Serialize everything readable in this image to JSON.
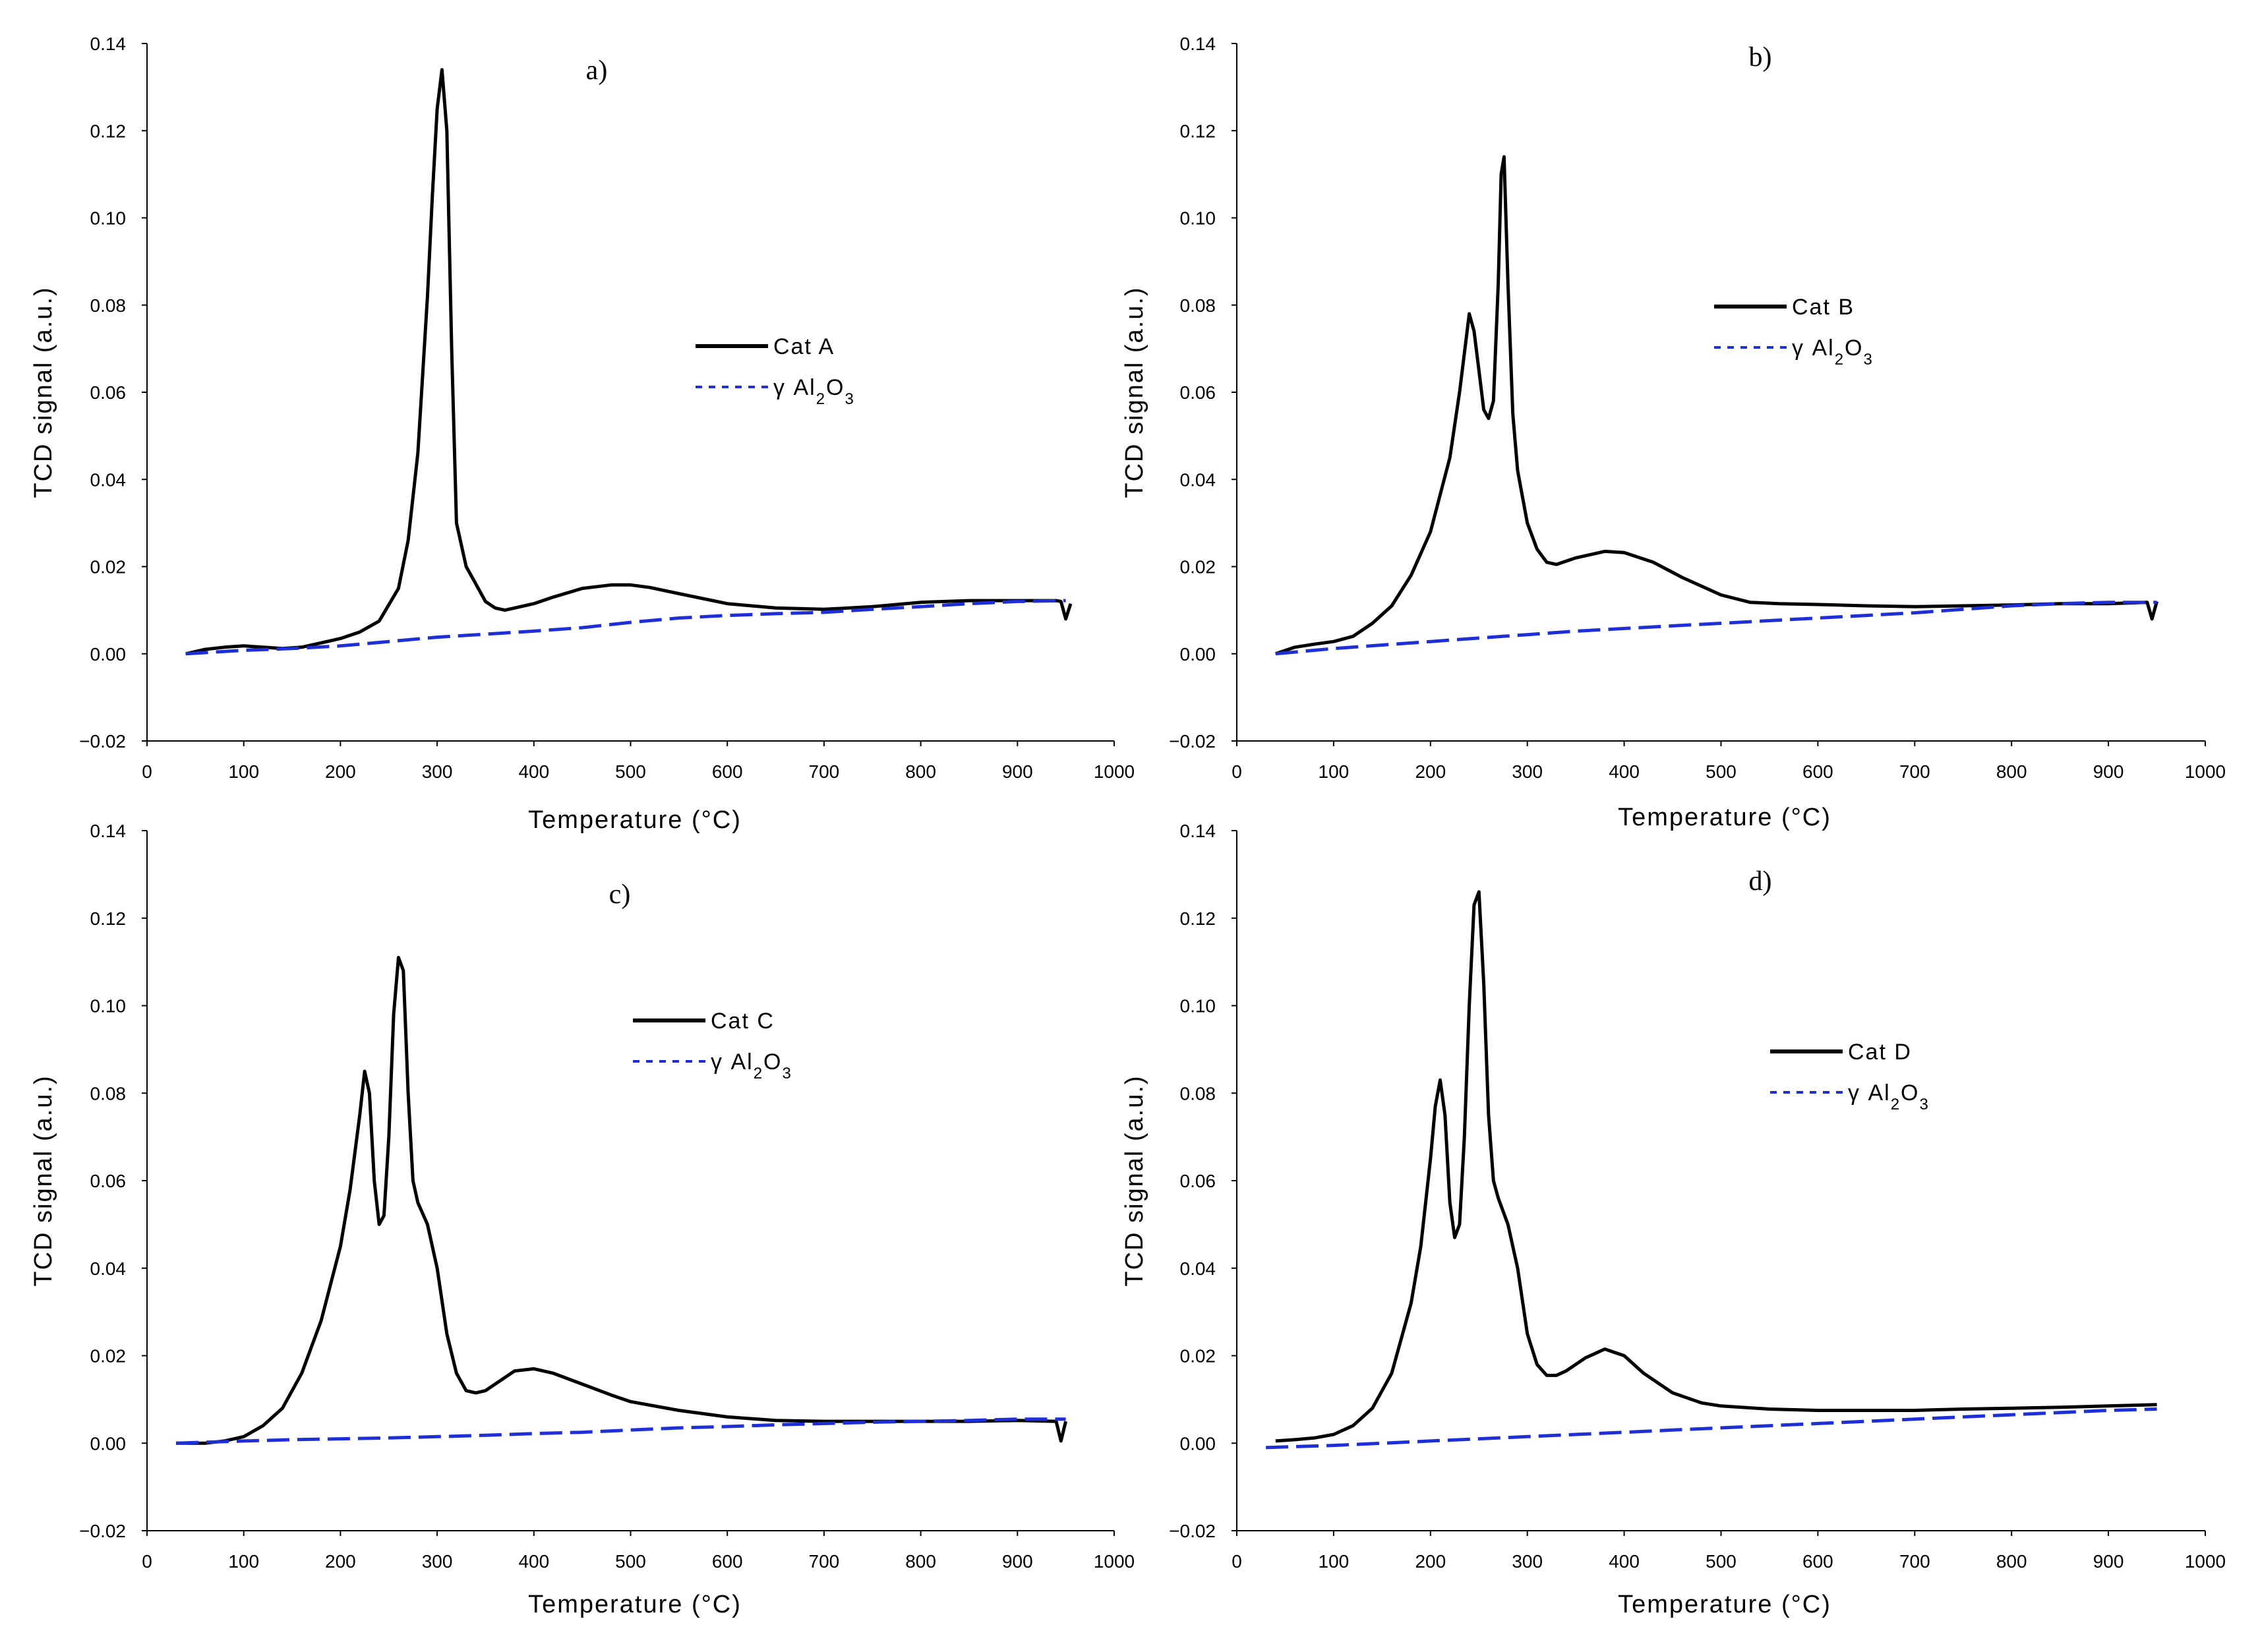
{
  "colors": {
    "cat": "#000000",
    "baseline": "#1f2fd8",
    "axis": "#000000"
  },
  "chart_data": [
    {
      "type": "line",
      "title": "a)",
      "xlabel": "Temperature (°C)",
      "ylabel": "TCD signal (a.u.)",
      "xlim": [
        0,
        1000
      ],
      "ylim": [
        -0.02,
        0.14
      ],
      "xticks": [
        "0",
        "100",
        "200",
        "300",
        "400",
        "500",
        "600",
        "700",
        "800",
        "900",
        "1000"
      ],
      "yticks": [
        "0.14",
        "0.12",
        "0.10",
        "0.08",
        "0.06",
        "0.04",
        "0.02",
        "0.00",
        "−0.02"
      ],
      "legend": {
        "position": "center-right",
        "entries": [
          "Cat A",
          "γ Al2O3"
        ]
      },
      "series": [
        {
          "name": "Cat A",
          "style": "solid",
          "x": [
            40,
            60,
            80,
            100,
            120,
            140,
            160,
            180,
            200,
            220,
            240,
            260,
            270,
            280,
            290,
            295,
            300,
            305,
            310,
            315,
            320,
            330,
            340,
            350,
            360,
            370,
            380,
            400,
            420,
            450,
            480,
            500,
            520,
            550,
            600,
            650,
            700,
            750,
            800,
            850,
            900,
            940,
            945,
            950,
            955
          ],
          "y": [
            0.0,
            0.001,
            0.0015,
            0.0018,
            0.0015,
            0.0012,
            0.0015,
            0.0025,
            0.0035,
            0.005,
            0.0075,
            0.015,
            0.026,
            0.046,
            0.082,
            0.105,
            0.125,
            0.134,
            0.12,
            0.07,
            0.03,
            0.02,
            0.016,
            0.012,
            0.0105,
            0.01,
            0.0105,
            0.0115,
            0.013,
            0.015,
            0.0158,
            0.0158,
            0.0152,
            0.0138,
            0.0115,
            0.0105,
            0.0102,
            0.0108,
            0.0118,
            0.0122,
            0.0122,
            0.0122,
            0.012,
            0.008,
            0.0115
          ]
        },
        {
          "name": "γ Al2O3",
          "style": "dashed",
          "x": [
            40,
            100,
            150,
            200,
            250,
            300,
            350,
            400,
            450,
            500,
            550,
            600,
            650,
            700,
            750,
            800,
            850,
            900,
            950
          ],
          "y": [
            0.0,
            0.0008,
            0.0012,
            0.0018,
            0.0028,
            0.0038,
            0.0045,
            0.0052,
            0.006,
            0.0072,
            0.0082,
            0.0088,
            0.0092,
            0.0095,
            0.0102,
            0.0108,
            0.0115,
            0.012,
            0.0122
          ]
        }
      ]
    },
    {
      "type": "line",
      "title": "b)",
      "xlabel": "Temperature (°C)",
      "ylabel": "TCD signal (a.u.)",
      "xlim": [
        0,
        1000
      ],
      "ylim": [
        -0.02,
        0.14
      ],
      "xticks": [
        "0",
        "100",
        "200",
        "300",
        "400",
        "500",
        "600",
        "700",
        "800",
        "900",
        "1000"
      ],
      "yticks": [
        "0.14",
        "0.12",
        "0.10",
        "0.08",
        "0.06",
        "0.04",
        "0.02",
        "0.00",
        "−0.02"
      ],
      "legend": {
        "position": "upper-right",
        "entries": [
          "Cat B",
          "γ Al2O3"
        ]
      },
      "series": [
        {
          "name": "Cat B",
          "style": "solid",
          "x": [
            40,
            60,
            80,
            100,
            120,
            140,
            160,
            180,
            200,
            220,
            230,
            240,
            245,
            250,
            255,
            260,
            265,
            270,
            273,
            276,
            280,
            285,
            290,
            300,
            310,
            320,
            330,
            350,
            380,
            400,
            430,
            460,
            500,
            530,
            560,
            600,
            650,
            700,
            750,
            800,
            850,
            900,
            940,
            945,
            950
          ],
          "y": [
            0.0,
            0.0015,
            0.0022,
            0.0028,
            0.004,
            0.007,
            0.011,
            0.018,
            0.028,
            0.045,
            0.06,
            0.078,
            0.074,
            0.065,
            0.056,
            0.054,
            0.058,
            0.085,
            0.11,
            0.114,
            0.085,
            0.055,
            0.042,
            0.03,
            0.024,
            0.021,
            0.0205,
            0.022,
            0.0235,
            0.0232,
            0.021,
            0.0175,
            0.0135,
            0.0118,
            0.0115,
            0.0113,
            0.011,
            0.0108,
            0.011,
            0.0112,
            0.0115,
            0.0115,
            0.0118,
            0.008,
            0.012
          ]
        },
        {
          "name": "γ Al2O3",
          "style": "dashed",
          "x": [
            40,
            100,
            150,
            200,
            250,
            300,
            350,
            400,
            450,
            500,
            550,
            600,
            650,
            700,
            750,
            800,
            850,
            900,
            950
          ],
          "y": [
            0.0,
            0.0012,
            0.002,
            0.0028,
            0.0036,
            0.0044,
            0.0052,
            0.0058,
            0.0064,
            0.007,
            0.0076,
            0.0082,
            0.0088,
            0.0094,
            0.0102,
            0.011,
            0.0115,
            0.0118,
            0.0118
          ]
        }
      ]
    },
    {
      "type": "line",
      "title": "c)",
      "xlabel": "Temperature (°C)",
      "ylabel": "TCD signal (a.u.)",
      "xlim": [
        0,
        1000
      ],
      "ylim": [
        -0.02,
        0.14
      ],
      "xticks": [
        "0",
        "100",
        "200",
        "300",
        "400",
        "500",
        "600",
        "700",
        "800",
        "900",
        "1000"
      ],
      "yticks": [
        "0.14",
        "0.12",
        "0.10",
        "0.08",
        "0.06",
        "0.04",
        "0.02",
        "0.00",
        "−0.02"
      ],
      "legend": {
        "position": "center-right",
        "entries": [
          "Cat C",
          "γ Al2O3"
        ]
      },
      "series": [
        {
          "name": "Cat C",
          "style": "solid",
          "x": [
            30,
            60,
            80,
            100,
            120,
            140,
            160,
            180,
            200,
            210,
            220,
            225,
            230,
            235,
            240,
            245,
            250,
            255,
            260,
            265,
            270,
            275,
            280,
            290,
            300,
            310,
            320,
            330,
            340,
            350,
            360,
            380,
            400,
            420,
            450,
            480,
            500,
            550,
            600,
            650,
            700,
            750,
            800,
            850,
            900,
            940,
            945,
            950
          ],
          "y": [
            0.0,
            0.0,
            0.0005,
            0.0015,
            0.004,
            0.008,
            0.016,
            0.028,
            0.045,
            0.058,
            0.075,
            0.085,
            0.08,
            0.06,
            0.05,
            0.052,
            0.07,
            0.098,
            0.111,
            0.108,
            0.08,
            0.06,
            0.055,
            0.05,
            0.04,
            0.025,
            0.016,
            0.012,
            0.0115,
            0.012,
            0.0135,
            0.0165,
            0.017,
            0.016,
            0.0135,
            0.011,
            0.0095,
            0.0075,
            0.006,
            0.0052,
            0.005,
            0.005,
            0.005,
            0.005,
            0.0052,
            0.005,
            0.0005,
            0.005
          ]
        },
        {
          "name": "γ Al2O3",
          "style": "dashed",
          "x": [
            30,
            100,
            150,
            200,
            250,
            300,
            350,
            400,
            450,
            500,
            550,
            600,
            650,
            700,
            750,
            800,
            850,
            900,
            950
          ],
          "y": [
            0.0,
            0.0005,
            0.0008,
            0.001,
            0.0012,
            0.0015,
            0.0018,
            0.0022,
            0.0025,
            0.003,
            0.0035,
            0.0038,
            0.0042,
            0.0045,
            0.0048,
            0.005,
            0.0052,
            0.0055,
            0.0055
          ]
        }
      ]
    },
    {
      "type": "line",
      "title": "d)",
      "xlabel": "Temperature (°C)",
      "ylabel": "TCD signal (a.u.)",
      "xlim": [
        0,
        1000
      ],
      "ylim": [
        -0.02,
        0.14
      ],
      "xticks": [
        "0",
        "100",
        "200",
        "300",
        "400",
        "500",
        "600",
        "700",
        "800",
        "900",
        "1000"
      ],
      "yticks": [
        "0.14",
        "0.12",
        "0.10",
        "0.08",
        "0.06",
        "0.04",
        "0.02",
        "0.00",
        "−0.02"
      ],
      "legend": {
        "position": "center-right",
        "entries": [
          "Cat D",
          "γ Al2O3"
        ]
      },
      "series": [
        {
          "name": "Cat D",
          "style": "solid",
          "x": [
            40,
            60,
            80,
            100,
            120,
            140,
            160,
            180,
            190,
            200,
            205,
            210,
            215,
            220,
            225,
            230,
            235,
            240,
            245,
            250,
            255,
            260,
            265,
            270,
            280,
            290,
            300,
            310,
            320,
            330,
            340,
            360,
            380,
            400,
            420,
            450,
            480,
            500,
            550,
            600,
            650,
            700,
            750,
            800,
            850,
            900,
            950
          ],
          "y": [
            0.0005,
            0.0008,
            0.0012,
            0.002,
            0.004,
            0.008,
            0.016,
            0.032,
            0.045,
            0.065,
            0.077,
            0.083,
            0.075,
            0.055,
            0.047,
            0.05,
            0.07,
            0.1,
            0.123,
            0.126,
            0.105,
            0.075,
            0.06,
            0.056,
            0.05,
            0.04,
            0.025,
            0.018,
            0.0155,
            0.0155,
            0.0165,
            0.0195,
            0.0215,
            0.02,
            0.016,
            0.0115,
            0.0092,
            0.0085,
            0.0078,
            0.0075,
            0.0075,
            0.0075,
            0.0078,
            0.008,
            0.0082,
            0.0085,
            0.0088
          ]
        },
        {
          "name": "γ Al2O3",
          "style": "dashed",
          "x": [
            30,
            100,
            150,
            200,
            250,
            300,
            350,
            400,
            450,
            500,
            550,
            600,
            650,
            700,
            750,
            800,
            850,
            900,
            950
          ],
          "y": [
            -0.001,
            -0.0005,
            0.0,
            0.0005,
            0.001,
            0.0015,
            0.002,
            0.0025,
            0.003,
            0.0035,
            0.004,
            0.0045,
            0.005,
            0.0055,
            0.006,
            0.0065,
            0.007,
            0.0075,
            0.0078
          ]
        }
      ]
    }
  ]
}
